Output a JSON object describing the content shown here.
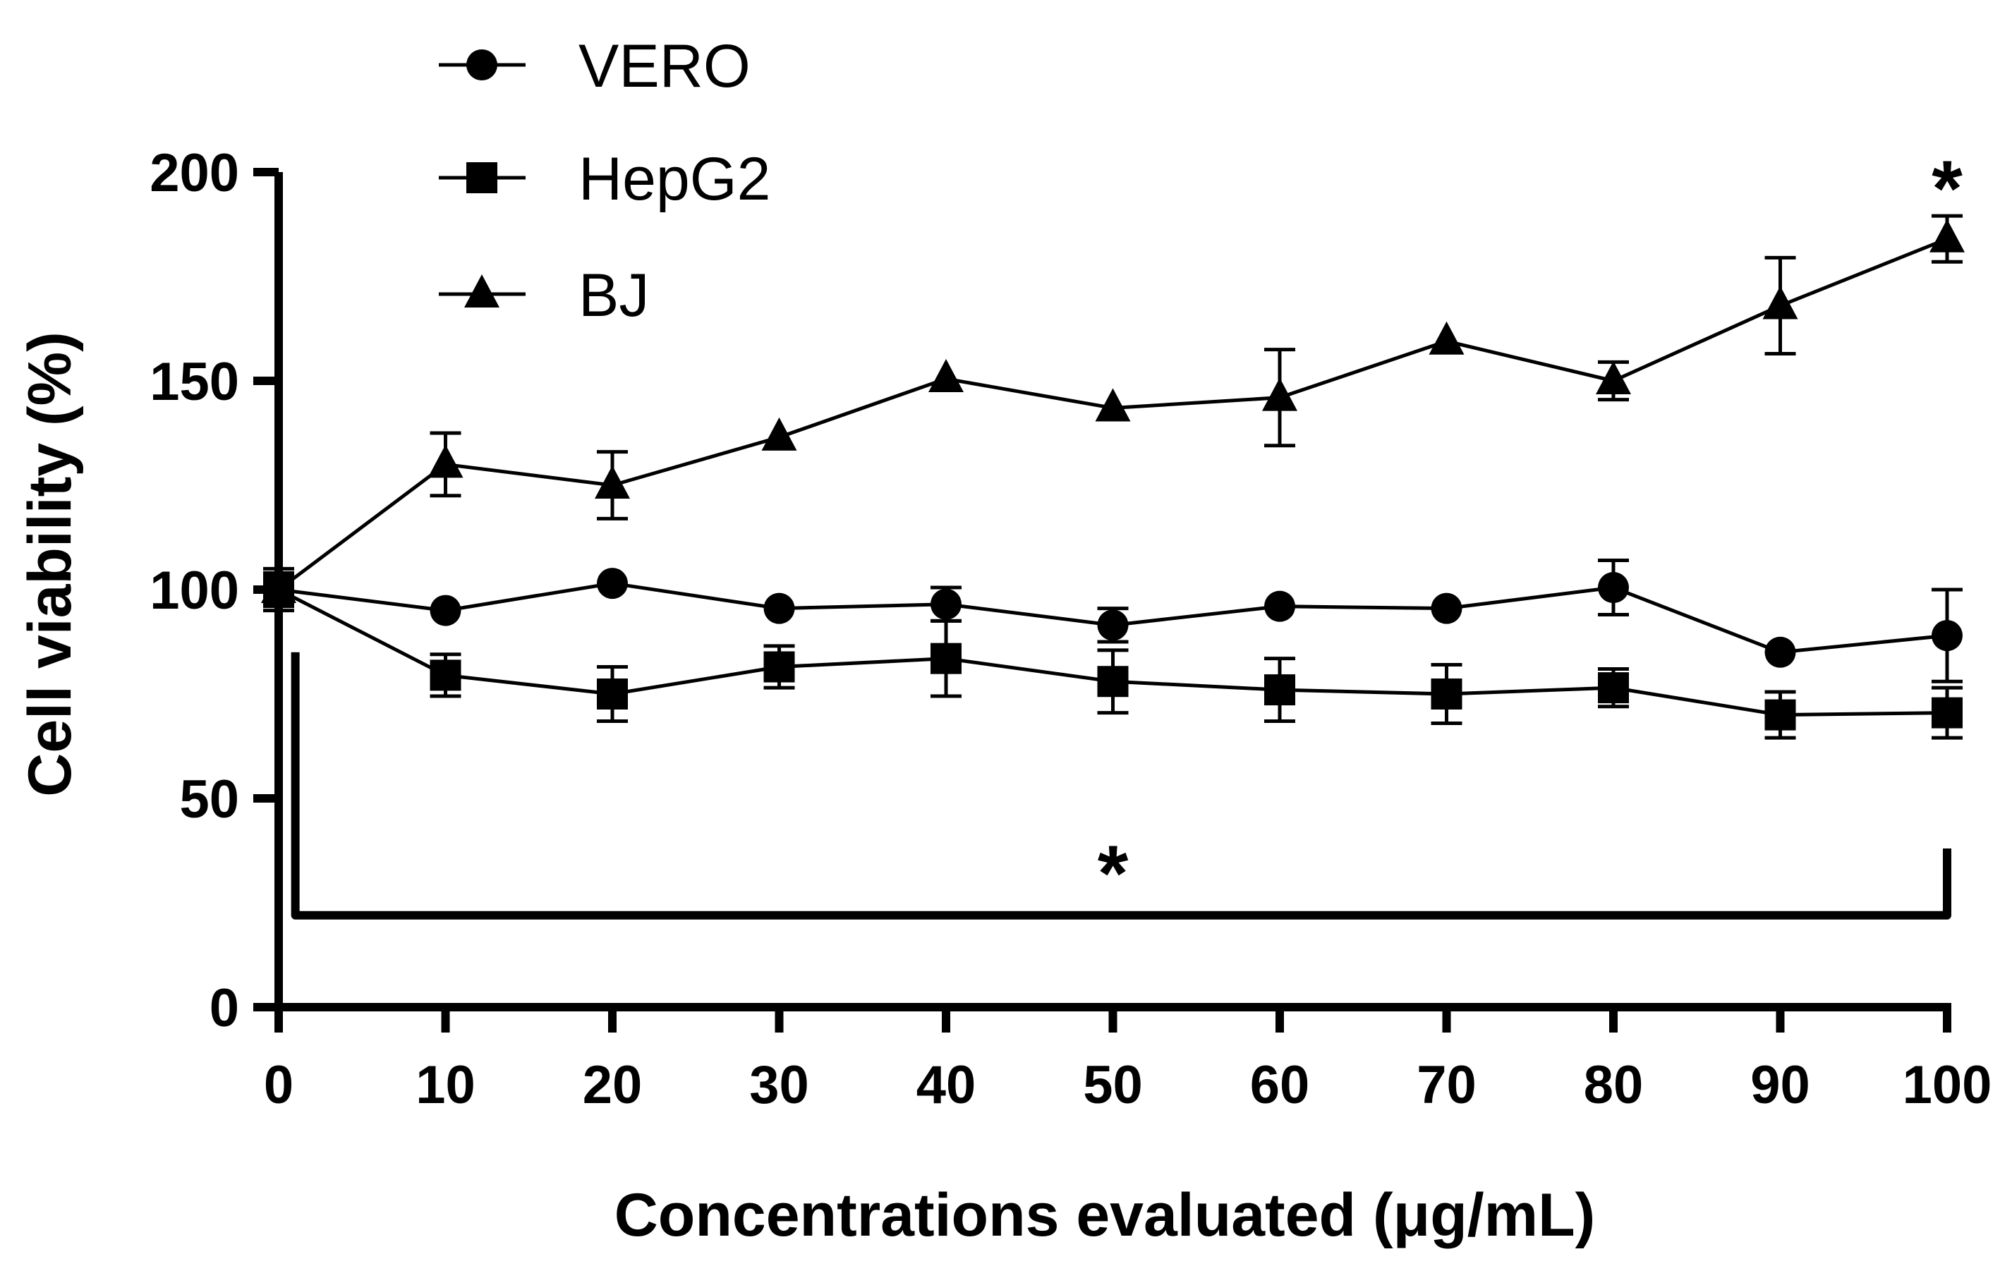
{
  "chart_data": {
    "type": "line",
    "title": "",
    "xlabel": "Concentrations evaluated (μg/mL)",
    "ylabel": "Cell viability (%)",
    "xlim": [
      0,
      100
    ],
    "ylim": [
      0,
      200
    ],
    "x": [
      0,
      10,
      20,
      30,
      40,
      50,
      60,
      70,
      80,
      90,
      100
    ],
    "x_ticks": [
      "0",
      "10",
      "20",
      "30",
      "40",
      "50",
      "60",
      "70",
      "80",
      "90",
      "100"
    ],
    "y_ticks": [
      "0",
      "50",
      "100",
      "150",
      "200"
    ],
    "y_tick_values": [
      0,
      50,
      100,
      150,
      200
    ],
    "legend_position": "top-left",
    "series": [
      {
        "name": "VERO",
        "marker": "circle",
        "values": [
          100,
          95,
          101.5,
          95.5,
          96.5,
          91.5,
          96,
          95.5,
          100.5,
          85,
          89
        ],
        "errors": [
          4,
          0,
          0,
          0,
          4,
          4,
          0,
          0,
          6.5,
          0,
          11
        ]
      },
      {
        "name": "HepG2",
        "marker": "square",
        "values": [
          100,
          79.5,
          75,
          81.5,
          83.5,
          78,
          76,
          75,
          76.5,
          70,
          70.5
        ],
        "errors": [
          5,
          5,
          6.5,
          5,
          9,
          7.5,
          7.5,
          7,
          4.5,
          5.5,
          6
        ]
      },
      {
        "name": "BJ",
        "marker": "triangle",
        "values": [
          100,
          130,
          125,
          136.5,
          150.5,
          143.5,
          146,
          159.5,
          150,
          168,
          184
        ],
        "errors": [
          0,
          7.5,
          8,
          0,
          0,
          0,
          11.5,
          0,
          4.5,
          11.5,
          5.5
        ]
      }
    ],
    "annotations": [
      {
        "text": "*",
        "x": 50,
        "y": 36,
        "note": "bracket spanning 0 to 100 µg/mL"
      },
      {
        "text": "*",
        "x": 100,
        "y": 200
      }
    ],
    "bracket": {
      "x_start": 1,
      "x_end": 100,
      "y_bottom": 22,
      "y_left_top": 85,
      "y_right_top": 38
    }
  }
}
